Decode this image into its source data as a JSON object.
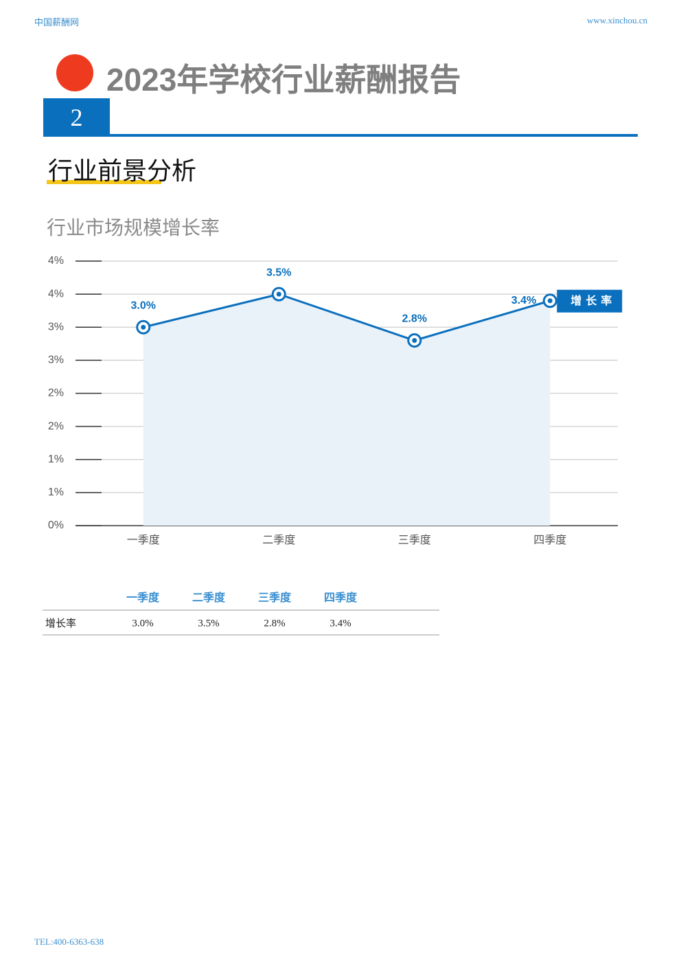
{
  "header": {
    "site": "中国薪酬网",
    "url": "www.xinchou.cn",
    "title": "2023年学校行业薪酬报告",
    "section_number": "2",
    "section_title": "行业前景分析"
  },
  "chart_data": {
    "type": "line",
    "title": "行业市场规模增长率",
    "categories": [
      "一季度",
      "二季度",
      "三季度",
      "四季度"
    ],
    "series": [
      {
        "name": "增长率",
        "color": "#0a6fbd",
        "values": [
          3.0,
          3.5,
          2.8,
          3.4
        ],
        "value_labels": [
          "3.0%",
          "3.5%",
          "2.8%",
          "3.4%"
        ]
      }
    ],
    "ylim": [
      0,
      4
    ],
    "yticks": [
      {
        "value": 0,
        "label": "0%"
      },
      {
        "value": 0.5,
        "label": "1%"
      },
      {
        "value": 1,
        "label": "1%"
      },
      {
        "value": 1.5,
        "label": "2%"
      },
      {
        "value": 2,
        "label": "2%"
      },
      {
        "value": 2.5,
        "label": "3%"
      },
      {
        "value": 3,
        "label": "3%"
      },
      {
        "value": 3.5,
        "label": "4%"
      },
      {
        "value": 4,
        "label": "4%"
      }
    ],
    "grid": true,
    "area_color": "#e9f1f9"
  },
  "table": {
    "header": [
      "一季度",
      "二季度",
      "三季度",
      "四季度"
    ],
    "rows": [
      [
        "增长率",
        "3.0%",
        "3.5%",
        "2.8%",
        "3.4%"
      ]
    ]
  },
  "footer": {
    "tel": "TEL:400-6363-638"
  }
}
